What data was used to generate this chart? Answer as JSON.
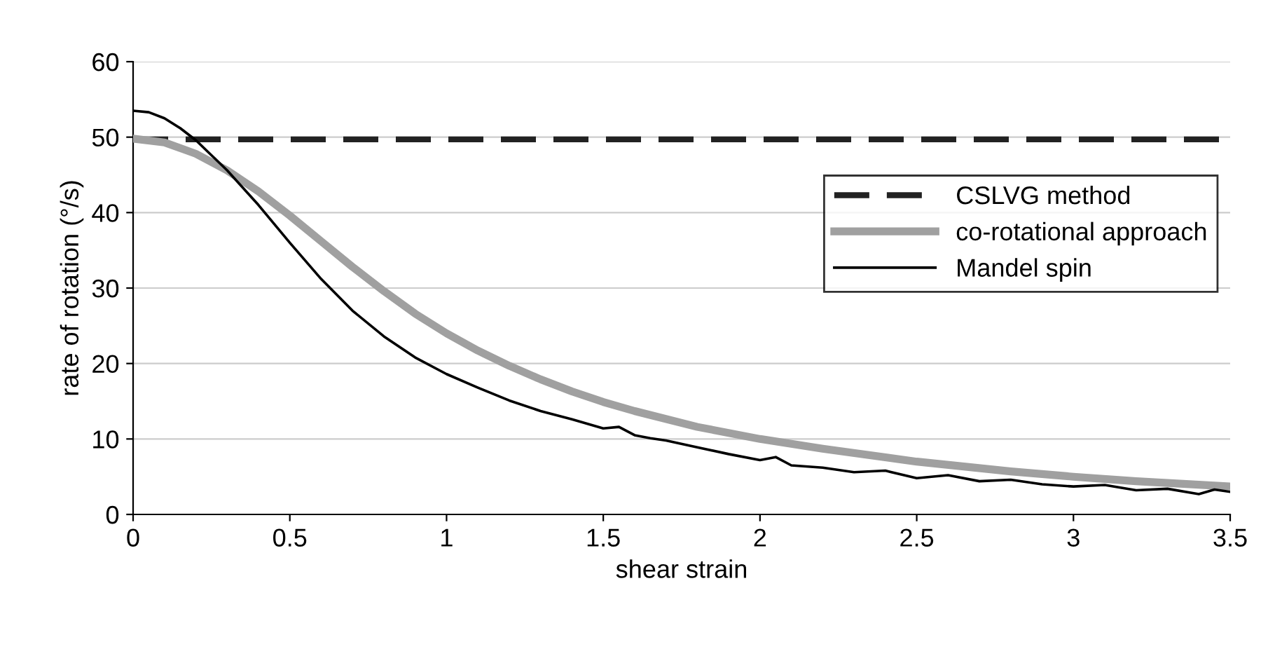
{
  "chart_data": {
    "type": "line",
    "xlabel": "shear strain",
    "ylabel": "rate of rotation (°/s)",
    "xlim": [
      0,
      3.5
    ],
    "ylim": [
      0,
      60
    ],
    "xticks": [
      0,
      0.5,
      1,
      1.5,
      2,
      2.5,
      3,
      3.5
    ],
    "yticks": [
      0,
      10,
      20,
      30,
      40,
      50,
      60
    ],
    "grid": "y",
    "legend": "right",
    "series": [
      {
        "name": "CSLVG method",
        "color": "#222222",
        "line_style": "dashed",
        "x": [
          0,
          3.5
        ],
        "values": [
          49.7,
          49.7
        ]
      },
      {
        "name": "co-rotational approach",
        "color": "#a0a0a0",
        "line_style": "solid",
        "x": [
          0,
          0.1,
          0.2,
          0.3,
          0.4,
          0.5,
          0.6,
          0.7,
          0.8,
          0.9,
          1.0,
          1.1,
          1.2,
          1.3,
          1.4,
          1.5,
          1.6,
          1.8,
          2.0,
          2.2,
          2.5,
          2.8,
          3.0,
          3.2,
          3.5
        ],
        "values": [
          49.8,
          49.3,
          47.8,
          45.6,
          42.8,
          39.6,
          36.2,
          32.8,
          29.6,
          26.6,
          24.0,
          21.7,
          19.7,
          17.9,
          16.3,
          14.9,
          13.7,
          11.6,
          10.0,
          8.7,
          7.0,
          5.7,
          5.0,
          4.4,
          3.7
        ]
      },
      {
        "name": "Mandel spin",
        "color": "#000000",
        "line_style": "solid",
        "x": [
          0,
          0.05,
          0.1,
          0.15,
          0.2,
          0.3,
          0.4,
          0.5,
          0.6,
          0.7,
          0.8,
          0.9,
          1.0,
          1.1,
          1.2,
          1.3,
          1.4,
          1.5,
          1.55,
          1.6,
          1.65,
          1.7,
          1.8,
          1.9,
          2.0,
          2.05,
          2.1,
          2.2,
          2.3,
          2.4,
          2.5,
          2.6,
          2.7,
          2.8,
          2.9,
          3.0,
          3.1,
          3.2,
          3.3,
          3.4,
          3.45,
          3.5
        ],
        "values": [
          53.5,
          53.3,
          52.5,
          51.2,
          49.6,
          45.6,
          41.0,
          36.0,
          31.2,
          27.0,
          23.6,
          20.8,
          18.6,
          16.8,
          15.1,
          13.7,
          12.6,
          11.4,
          11.6,
          10.5,
          10.1,
          9.8,
          8.9,
          8.0,
          7.2,
          7.6,
          6.5,
          6.2,
          5.6,
          5.8,
          4.8,
          5.2,
          4.4,
          4.6,
          4.0,
          3.7,
          3.9,
          3.2,
          3.4,
          2.7,
          3.3,
          3.0
        ]
      }
    ]
  }
}
